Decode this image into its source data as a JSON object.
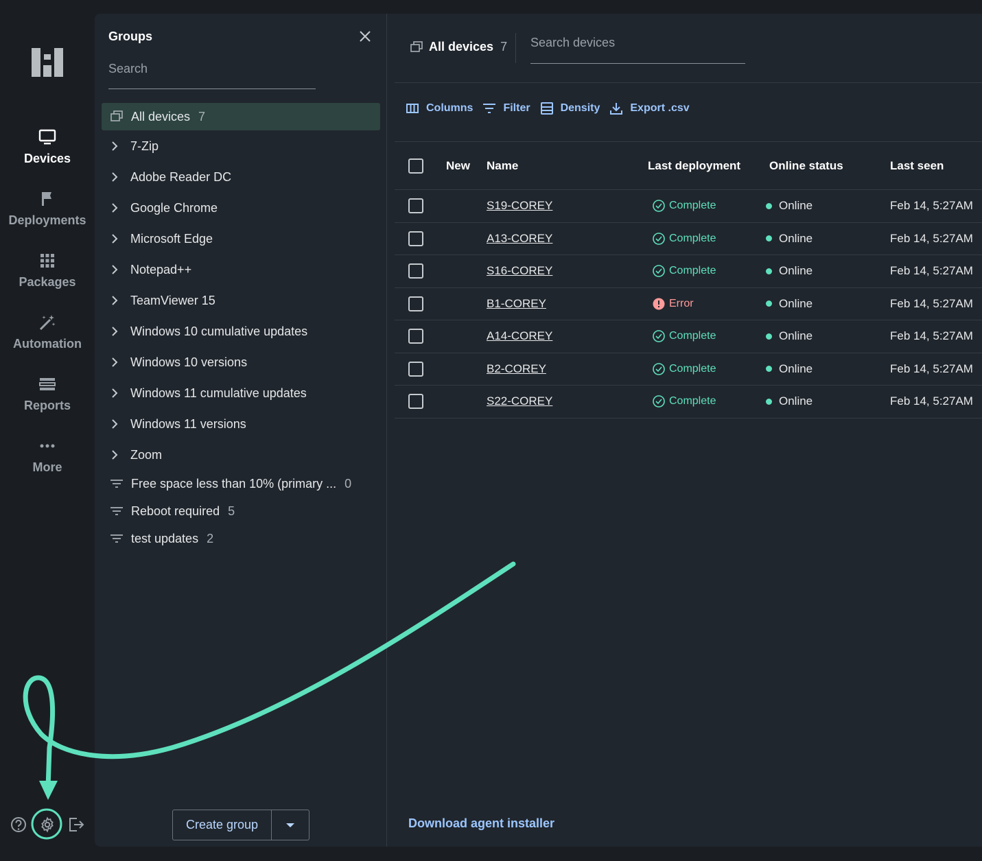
{
  "nav": {
    "items": [
      {
        "label": "Devices",
        "icon": "monitor-icon",
        "active": true
      },
      {
        "label": "Deployments",
        "icon": "flag-icon"
      },
      {
        "label": "Packages",
        "icon": "grid-icon"
      },
      {
        "label": "Automation",
        "icon": "magic-wand-icon"
      },
      {
        "label": "Reports",
        "icon": "reports-icon"
      },
      {
        "label": "More",
        "icon": "more-dots-icon"
      }
    ]
  },
  "groups": {
    "title": "Groups",
    "search_placeholder": "Search",
    "all_devices": {
      "label": "All devices",
      "count": "7"
    },
    "items": [
      {
        "label": "7-Zip"
      },
      {
        "label": "Adobe Reader DC"
      },
      {
        "label": "Google Chrome"
      },
      {
        "label": "Microsoft Edge"
      },
      {
        "label": "Notepad++"
      },
      {
        "label": "TeamViewer 15"
      },
      {
        "label": "Windows 10 cumulative updates"
      },
      {
        "label": "Windows 10 versions"
      },
      {
        "label": "Windows 11 cumulative updates"
      },
      {
        "label": "Windows 11 versions"
      },
      {
        "label": "Zoom"
      }
    ],
    "filters": [
      {
        "label": "Free space less than 10% (primary ...",
        "count": "0"
      },
      {
        "label": "Reboot required",
        "count": "5"
      },
      {
        "label": "test updates",
        "count": "2"
      }
    ],
    "create_label": "Create group"
  },
  "devices": {
    "title": "All devices",
    "count": "7",
    "search_placeholder": "Search devices",
    "toolbar": {
      "columns": "Columns",
      "filter": "Filter",
      "density": "Density",
      "export": "Export .csv"
    },
    "headers": {
      "new": "New",
      "name": "Name",
      "last_deployment": "Last deployment",
      "online_status": "Online status",
      "last_seen": "Last seen"
    },
    "rows": [
      {
        "name": "S19-COREY",
        "deployment": "Complete",
        "status": "Online",
        "last_seen": "Feb 14, 5:27AM"
      },
      {
        "name": "A13-COREY",
        "deployment": "Complete",
        "status": "Online",
        "last_seen": "Feb 14, 5:27AM"
      },
      {
        "name": "S16-COREY",
        "deployment": "Complete",
        "status": "Online",
        "last_seen": "Feb 14, 5:27AM"
      },
      {
        "name": "B1-COREY",
        "deployment": "Error",
        "status": "Online",
        "last_seen": "Feb 14, 5:27AM"
      },
      {
        "name": "A14-COREY",
        "deployment": "Complete",
        "status": "Online",
        "last_seen": "Feb 14, 5:27AM"
      },
      {
        "name": "B2-COREY",
        "deployment": "Complete",
        "status": "Online",
        "last_seen": "Feb 14, 5:27AM"
      },
      {
        "name": "S22-COREY",
        "deployment": "Complete",
        "status": "Online",
        "last_seen": "Feb 14, 5:27AM"
      }
    ],
    "download_agent": "Download agent installer"
  },
  "colors": {
    "accent": "#5ee0bd",
    "link": "#9cc6ff",
    "error": "#ff9a9a",
    "selected_bg": "#2d4440",
    "panel_bg": "#20262d",
    "rail_bg": "#1a1e23"
  }
}
